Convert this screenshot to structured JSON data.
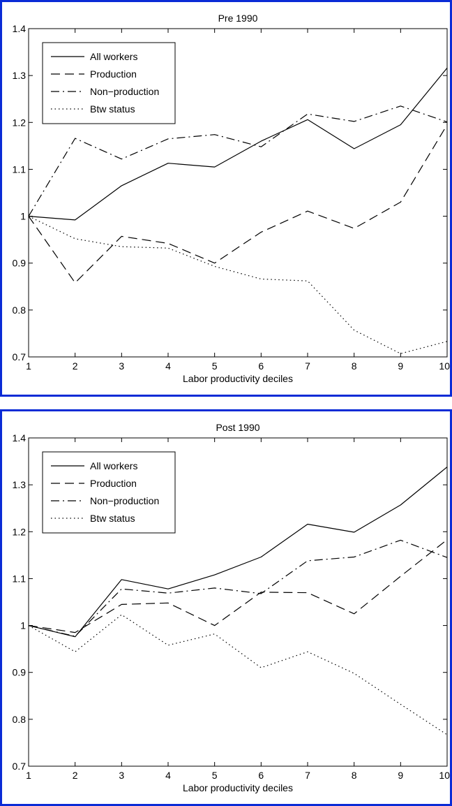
{
  "colors": {
    "frame": "#0a2bd6",
    "line": "#000000"
  },
  "chart_data": [
    {
      "type": "line",
      "title": "Pre 1990",
      "xlabel": "Labor productivity deciles",
      "ylabel": "",
      "xlim": [
        1,
        10
      ],
      "ylim": [
        0.7,
        1.4
      ],
      "xticks": [
        "1",
        "2",
        "3",
        "4",
        "5",
        "6",
        "7",
        "8",
        "9",
        "10"
      ],
      "yticks": [
        "0.7",
        "0.8",
        "0.9",
        "1",
        "1.1",
        "1.2",
        "1.3",
        "1.4"
      ],
      "grid": false,
      "legend_position": "top-left",
      "x": [
        1,
        2,
        3,
        4,
        5,
        6,
        7,
        8,
        9,
        10
      ],
      "series": [
        {
          "name": "All workers",
          "style": "solid",
          "values": [
            1.0,
            0.992,
            1.065,
            1.113,
            1.105,
            1.16,
            1.206,
            1.144,
            1.195,
            1.316
          ]
        },
        {
          "name": "Production",
          "style": "dashed",
          "values": [
            1.0,
            0.858,
            0.957,
            0.942,
            0.9,
            0.966,
            1.011,
            0.974,
            1.03,
            1.195
          ]
        },
        {
          "name": "Non−production",
          "style": "dashdot",
          "values": [
            1.0,
            1.166,
            1.122,
            1.165,
            1.174,
            1.148,
            1.218,
            1.202,
            1.235,
            1.201
          ]
        },
        {
          "name": "Btw status",
          "style": "dotted",
          "values": [
            1.0,
            0.952,
            0.935,
            0.932,
            0.893,
            0.866,
            0.862,
            0.757,
            0.707,
            0.733
          ]
        }
      ]
    },
    {
      "type": "line",
      "title": "Post 1990",
      "xlabel": "Labor productivity deciles",
      "ylabel": "",
      "xlim": [
        1,
        10
      ],
      "ylim": [
        0.7,
        1.4
      ],
      "xticks": [
        "1",
        "2",
        "3",
        "4",
        "5",
        "6",
        "7",
        "8",
        "9",
        "10"
      ],
      "yticks": [
        "0.7",
        "0.8",
        "0.9",
        "1",
        "1.1",
        "1.2",
        "1.3",
        "1.4"
      ],
      "grid": false,
      "legend_position": "top-left",
      "x": [
        1,
        2,
        3,
        4,
        5,
        6,
        7,
        8,
        9,
        10
      ],
      "series": [
        {
          "name": "All workers",
          "style": "solid",
          "values": [
            1.0,
            0.976,
            1.098,
            1.078,
            1.108,
            1.146,
            1.216,
            1.199,
            1.257,
            1.338
          ]
        },
        {
          "name": "Production",
          "style": "dashed",
          "values": [
            1.0,
            0.985,
            1.045,
            1.048,
            1.0,
            1.071,
            1.07,
            1.025,
            1.105,
            1.183
          ]
        },
        {
          "name": "Non−production",
          "style": "dashdot",
          "values": [
            1.0,
            0.977,
            1.078,
            1.069,
            1.08,
            1.068,
            1.138,
            1.146,
            1.182,
            1.145
          ]
        },
        {
          "name": "Btw status",
          "style": "dotted",
          "values": [
            1.0,
            0.944,
            1.023,
            0.958,
            0.982,
            0.91,
            0.944,
            0.898,
            0.832,
            0.767
          ]
        }
      ]
    }
  ]
}
